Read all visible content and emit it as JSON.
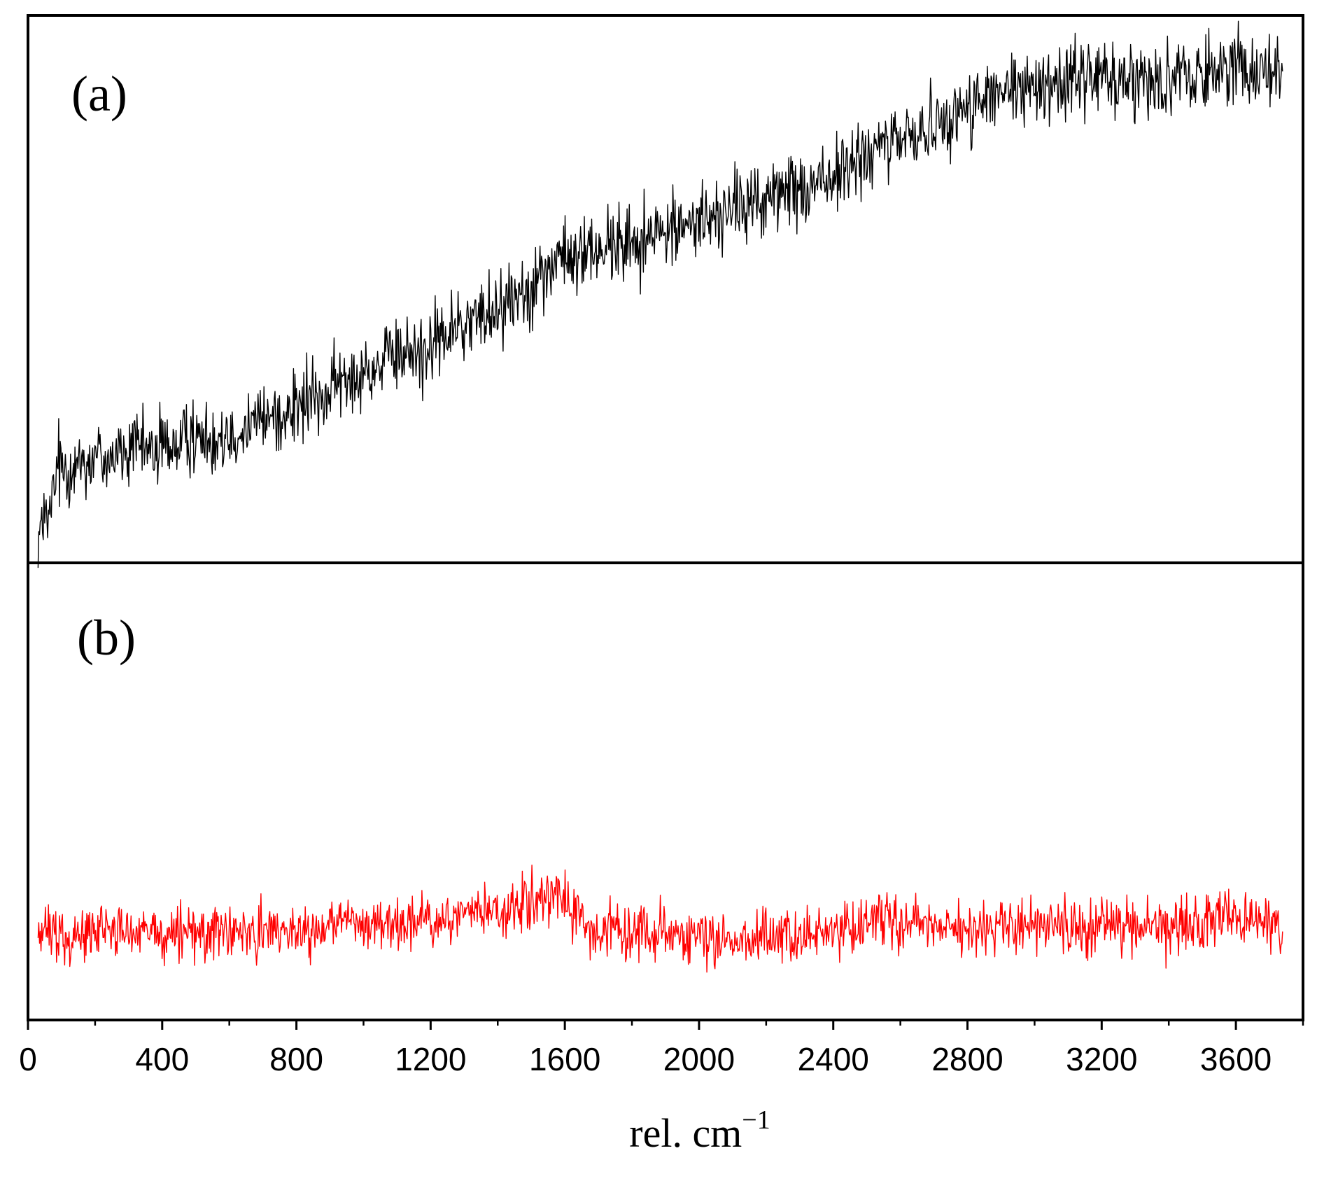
{
  "chart_data": [
    {
      "type": "line",
      "panel_label": "(a)",
      "xlim": [
        0,
        3800
      ],
      "x_start": 30,
      "x_end": 3740,
      "color": "#000000",
      "trend_x": [
        30,
        60,
        90,
        200,
        400,
        600,
        800,
        1000,
        1200,
        1400,
        1600,
        1800,
        2000,
        2200,
        2400,
        2600,
        2800,
        3000,
        3200,
        3400,
        3600,
        3740
      ],
      "trend_y": [
        0.05,
        0.07,
        0.17,
        0.19,
        0.21,
        0.24,
        0.28,
        0.35,
        0.4,
        0.47,
        0.56,
        0.59,
        0.63,
        0.67,
        0.71,
        0.78,
        0.84,
        0.88,
        0.9,
        0.89,
        0.92,
        0.91
      ],
      "noise_amplitude": 0.035,
      "ylim": [
        0,
        1
      ],
      "y_ticks_shown": false
    },
    {
      "type": "line",
      "panel_label": "(b)",
      "xlim": [
        0,
        3800
      ],
      "x_start": 30,
      "x_end": 3740,
      "color": "#ff0000",
      "trend_x": [
        30,
        200,
        400,
        800,
        1200,
        1450,
        1580,
        1650,
        1800,
        2000,
        2400,
        2550,
        2800,
        3200,
        3400,
        3600,
        3740
      ],
      "trend_y": [
        0.18,
        0.19,
        0.18,
        0.19,
        0.21,
        0.24,
        0.27,
        0.2,
        0.19,
        0.17,
        0.18,
        0.22,
        0.19,
        0.2,
        0.19,
        0.23,
        0.2
      ],
      "noise_amplitude": 0.03,
      "ylim": [
        0,
        1
      ],
      "y_ticks_shown": false
    }
  ],
  "x_axis": {
    "label_text": "rel. cm",
    "label_superscript": "−1",
    "tick_labels": [
      "0",
      "400",
      "800",
      "1200",
      "1600",
      "2000",
      "2400",
      "2800",
      "3200",
      "3600"
    ],
    "major_ticks": [
      0,
      400,
      800,
      1200,
      1600,
      2000,
      2400,
      2800,
      3200,
      3600
    ],
    "minor_ticks": [
      200,
      600,
      1000,
      1400,
      1800,
      2200,
      2600,
      3000,
      3400,
      3800
    ]
  }
}
